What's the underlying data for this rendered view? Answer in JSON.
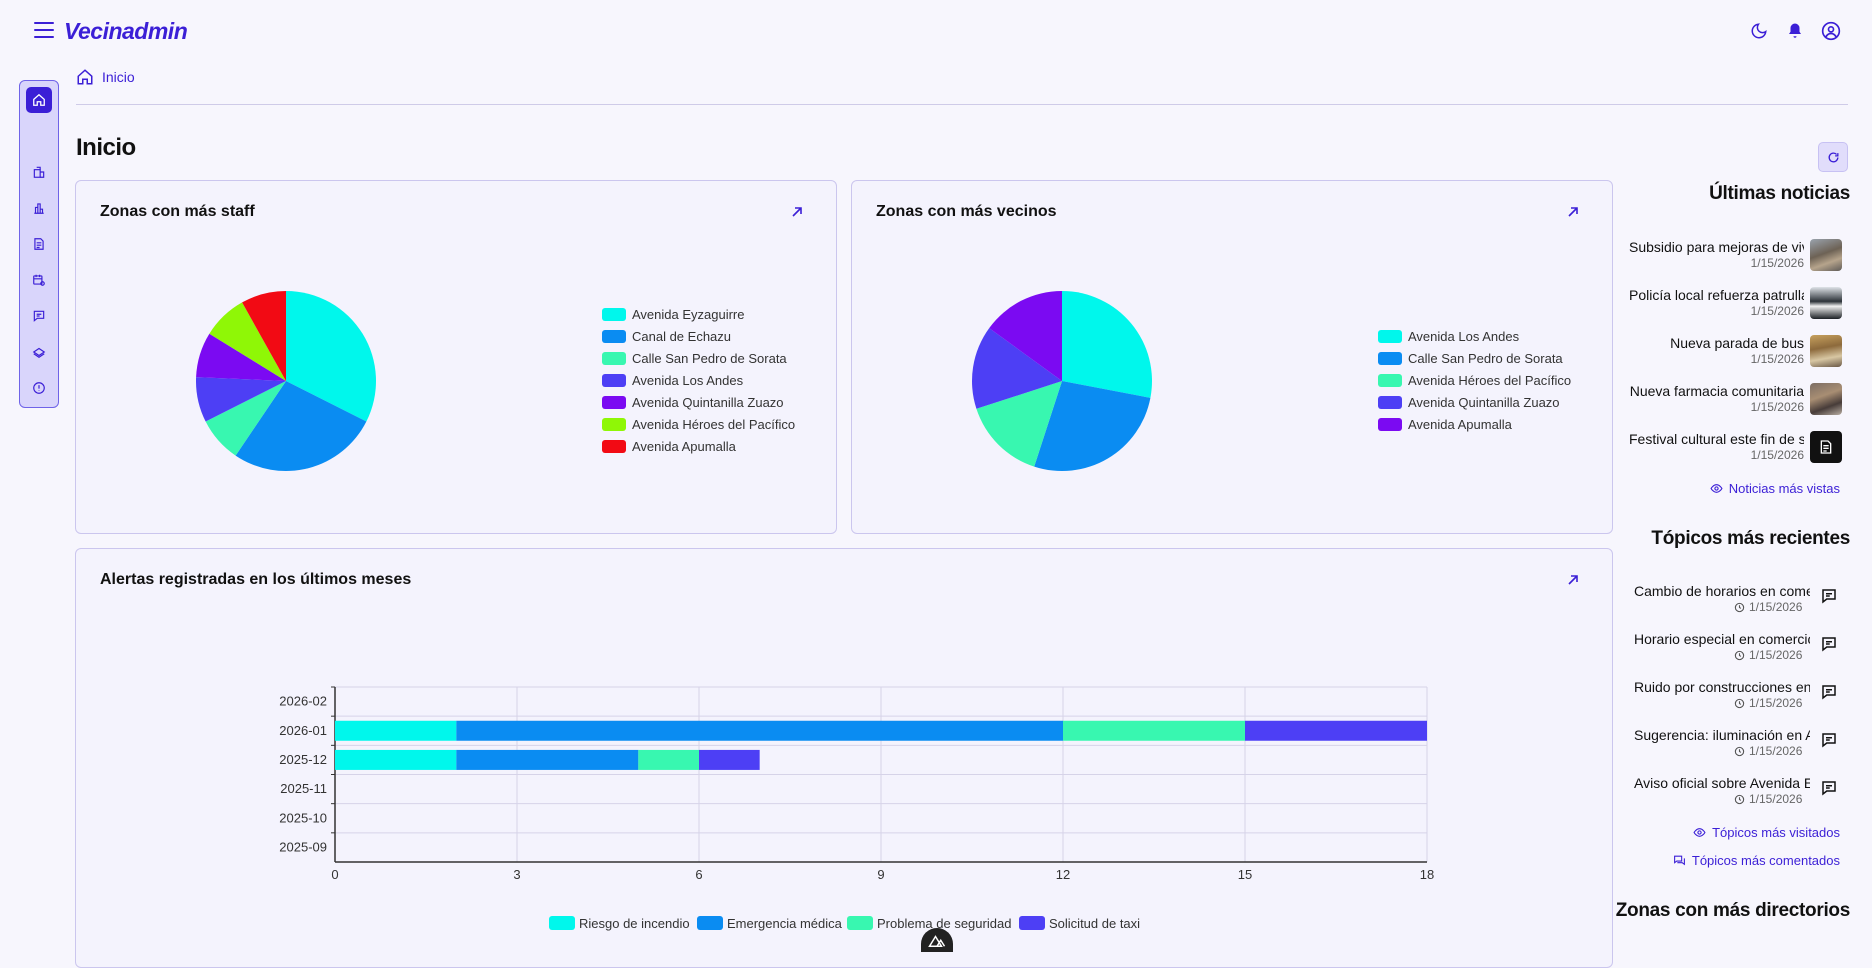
{
  "app": {
    "brand": "Vecinadmin"
  },
  "breadcrumb": {
    "label": "Inicio"
  },
  "page": {
    "title": "Inicio"
  },
  "colors": {
    "accent": "#3b1fd6",
    "series": [
      "#00f7ec",
      "#0a8cf2",
      "#38f7b0",
      "#4d3ff5",
      "#7b0af2",
      "#8ff706",
      "#f20a14"
    ]
  },
  "sidebar": {
    "items": [
      {
        "icon": "home-icon",
        "active": true
      },
      {
        "icon": "building-icon"
      },
      {
        "icon": "chart-icon"
      },
      {
        "icon": "document-icon"
      },
      {
        "icon": "calendar-settings-icon"
      },
      {
        "icon": "message-icon"
      },
      {
        "icon": "ticket-icon"
      },
      {
        "icon": "alert-icon"
      }
    ]
  },
  "cards": {
    "staff": {
      "title": "Zonas con más staff"
    },
    "vecinos": {
      "title": "Zonas con más vecinos"
    },
    "alertas": {
      "title": "Alertas registradas en los últimos meses"
    }
  },
  "chart_data": [
    {
      "type": "pie",
      "title": "Zonas con más staff",
      "labels": [
        "Avenida Eyzaguirre",
        "Canal de Echazu",
        "Calle San Pedro de Sorata",
        "Avenida Los Andes",
        "Avenida Quintanilla Zuazo",
        "Avenida Héroes del Pacífico",
        "Avenida Apumalla"
      ],
      "values": [
        6,
        5,
        1.5,
        1.5,
        1.5,
        1.5,
        1.5
      ],
      "colors": [
        "#00f7ec",
        "#0a8cf2",
        "#38f7b0",
        "#4d3ff5",
        "#7b0af2",
        "#8ff706",
        "#f20a14"
      ]
    },
    {
      "type": "pie",
      "title": "Zonas con más vecinos",
      "labels": [
        "Avenida Los Andes",
        "Calle San Pedro de Sorata",
        "Avenida Héroes del Pacífico",
        "Avenida Quintanilla Zuazo",
        "Avenida Apumalla"
      ],
      "values": [
        28,
        27,
        15,
        15,
        15
      ],
      "colors": [
        "#00f7ec",
        "#0a8cf2",
        "#38f7b0",
        "#4d3ff5",
        "#7b0af2"
      ]
    },
    {
      "type": "bar",
      "orientation": "horizontal",
      "stacked": true,
      "title": "Alertas registradas en los últimos meses",
      "categories": [
        "2026-02",
        "2026-01",
        "2025-12",
        "2025-11",
        "2025-10",
        "2025-09"
      ],
      "series": [
        {
          "name": "Riesgo de incendio",
          "color": "#00f7ec",
          "values": [
            0,
            2,
            2,
            0,
            0,
            0
          ]
        },
        {
          "name": "Emergencia médica",
          "color": "#0a8cf2",
          "values": [
            0,
            10,
            3,
            0,
            0,
            0
          ]
        },
        {
          "name": "Problema de seguridad",
          "color": "#38f7b0",
          "values": [
            0,
            3,
            1,
            0,
            0,
            0
          ]
        },
        {
          "name": "Solicitud de taxi",
          "color": "#4d3ff5",
          "values": [
            0,
            3,
            1,
            0,
            0,
            0
          ]
        }
      ],
      "xlim": [
        0,
        18
      ],
      "xticks": [
        0,
        3,
        6,
        9,
        12,
        15,
        18
      ],
      "grid": true,
      "legend": "bottom"
    }
  ],
  "news": {
    "heading": "Últimas noticias",
    "items": [
      {
        "title": "Subsidio para mejoras de viviendas",
        "date": "1/15/2026",
        "thumb": "photo-street"
      },
      {
        "title": "Policía local refuerza patrullaje",
        "date": "1/15/2026",
        "thumb": "photo-police"
      },
      {
        "title": "Nueva parada de bus",
        "date": "1/15/2026",
        "thumb": "photo-bus"
      },
      {
        "title": "Nueva farmacia comunitaria",
        "date": "1/15/2026",
        "thumb": "photo-pharmacy"
      },
      {
        "title": "Festival cultural este fin de semana",
        "date": "1/15/2026",
        "thumb": "document-icon"
      }
    ],
    "more": "Noticias más vistas"
  },
  "topics": {
    "heading": "Tópicos más recientes",
    "items": [
      {
        "title": "Cambio de horarios en comercio",
        "date": "1/15/2026"
      },
      {
        "title": "Horario especial en comercio",
        "date": "1/15/2026"
      },
      {
        "title": "Ruido por construcciones en Avenida",
        "date": "1/15/2026"
      },
      {
        "title": "Sugerencia: iluminación en Avenida",
        "date": "1/15/2026"
      },
      {
        "title": "Aviso oficial sobre Avenida Eyzaguirre",
        "date": "1/15/2026"
      }
    ],
    "more_visited": "Tópicos más visitados",
    "more_commented": "Tópicos más comentados"
  },
  "directorios": {
    "heading": "Zonas con más directorios"
  }
}
